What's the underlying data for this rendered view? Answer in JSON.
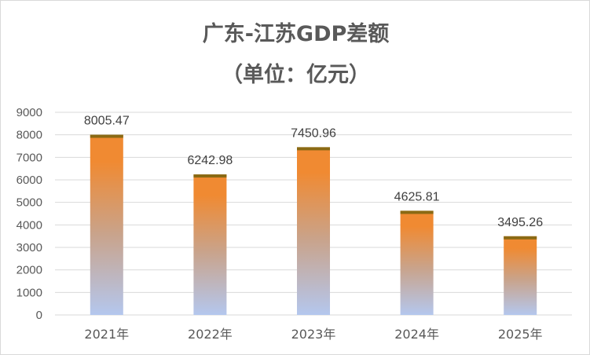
{
  "chart_data": {
    "type": "bar",
    "title": "广东-江苏GDP差额",
    "subtitle": "（单位：亿元）",
    "categories": [
      "2021年",
      "2022年",
      "2023年",
      "2024年",
      "2025年"
    ],
    "values": [
      8005.47,
      6242.98,
      7450.96,
      4625.81,
      3495.26
    ],
    "value_labels": [
      "8005.47",
      "6242.98",
      "7450.96",
      "4625.81",
      "3495.26"
    ],
    "ylim": [
      0,
      9000
    ],
    "yticks": [
      "0",
      "1000",
      "2000",
      "3000",
      "4000",
      "5000",
      "6000",
      "7000",
      "8000",
      "9000"
    ],
    "grid": true,
    "legend": "none",
    "colors": {
      "bar_top": "#f08a32",
      "bar_mid": "#c9a38b",
      "bar_bottom": "#b4c7ee",
      "bar_cap": "#8a6a14",
      "grid": "#d9d9d9",
      "text": "#595959"
    }
  }
}
